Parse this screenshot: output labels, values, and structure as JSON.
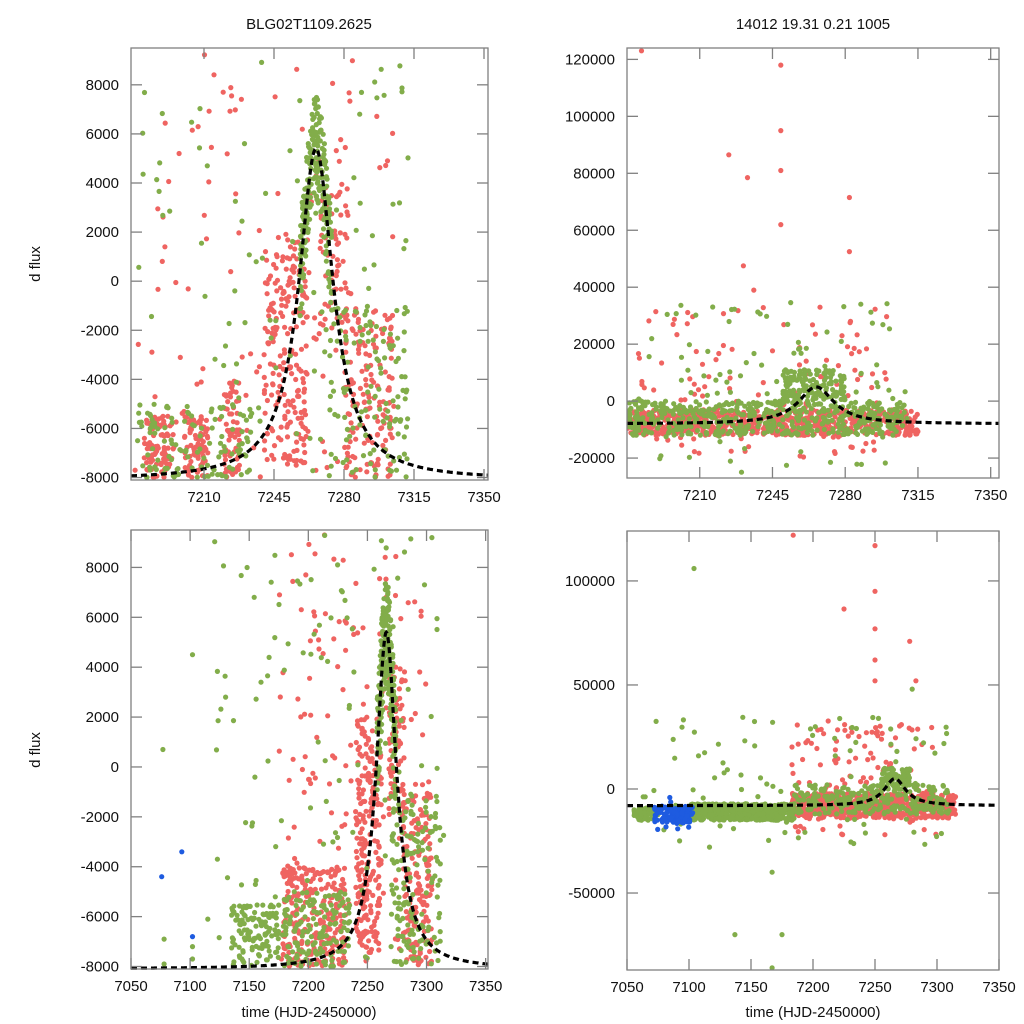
{
  "figure": {
    "titles": [
      "BLG02T1109.2625",
      "14012  19.31  0.21  1005"
    ],
    "ylabel": "d flux",
    "xlabel": "time (HJD-2450000)"
  },
  "colors": {
    "red": "#ef6461",
    "green": "#82ad4a",
    "blue": "#1e5be0",
    "model": "#000000",
    "frame": "#808080"
  },
  "chart_data": [
    {
      "type": "scatter",
      "panel": "top-left",
      "title": "BLG02T1109.2625",
      "ylabel": "d flux",
      "xlabel": "",
      "xlim": [
        7173.5,
        7352
      ],
      "ylim": [
        -8100,
        9500
      ],
      "xticks": [
        7210,
        7245,
        7280,
        7315,
        7350
      ],
      "yticks": [
        8000,
        6000,
        4000,
        2000,
        0,
        -2000,
        -4000,
        -6000,
        -8000
      ],
      "model": {
        "t0": 7266,
        "peak": 5400,
        "base": -8100,
        "width": 14
      },
      "series": [
        {
          "name": "red",
          "color_key": "red",
          "clusters": [
            [
              7180,
              7195,
              -8000,
              -5500,
              90
            ],
            [
              7200,
              7212,
              -8000,
              -5500,
              80
            ],
            [
              7220,
              7228,
              -8000,
              -4000,
              60
            ],
            [
              7240,
              7262,
              -7500,
              2000,
              200
            ],
            [
              7268,
              7282,
              -2000,
              4000,
              60
            ],
            [
              7280,
              7305,
              -8000,
              -1000,
              150
            ]
          ],
          "scatter_range": [
            7175,
            7305,
            -8000,
            9300,
            120
          ]
        },
        {
          "name": "green",
          "color_key": "green",
          "clusters": [
            [
              7175,
              7235,
              -8000,
              -5000,
              120
            ],
            [
              7258,
              7274,
              2000,
              9000,
              230
            ],
            [
              7270,
              7312,
              -8000,
              -1000,
              120
            ]
          ],
          "scatter_range": [
            7175,
            7315,
            -8000,
            9300,
            90
          ]
        }
      ]
    },
    {
      "type": "scatter",
      "panel": "top-right",
      "title": "14012  19.31  0.21  1005",
      "ylabel": "",
      "xlabel": "",
      "xlim": [
        7175,
        7354
      ],
      "ylim": [
        -27000,
        124000
      ],
      "xticks": [
        7210,
        7245,
        7280,
        7315,
        7350
      ],
      "yticks": [
        120000,
        100000,
        80000,
        60000,
        40000,
        20000,
        0,
        -20000
      ],
      "model": {
        "t0": 7266,
        "peak": 5000,
        "base": -8000,
        "width": 14
      },
      "series": [
        {
          "name": "red",
          "color_key": "red",
          "clusters": [
            [
              7175,
              7315,
              -12000,
              -3000,
              700
            ]
          ],
          "scatter_range": [
            7180,
            7300,
            -20000,
            33000,
            120
          ],
          "outliers": [
            [
              7182,
              123000
            ],
            [
              7249,
              118000
            ],
            [
              7249,
              95000
            ],
            [
              7249,
              81000
            ],
            [
              7224,
              86500
            ],
            [
              7233,
              78500
            ],
            [
              7231,
              47500
            ],
            [
              7249,
              62000
            ],
            [
              7282,
              71500
            ],
            [
              7282,
              52500
            ],
            [
              7236,
              39000
            ]
          ]
        },
        {
          "name": "green",
          "color_key": "green",
          "clusters": [
            [
              7175,
              7310,
              -12000,
              0,
              500
            ],
            [
              7250,
              7280,
              0,
              11000,
              150
            ]
          ],
          "scatter_range": [
            7180,
            7310,
            -26000,
            35000,
            100
          ]
        }
      ]
    },
    {
      "type": "scatter",
      "panel": "bottom-left",
      "title": "",
      "ylabel": "d flux",
      "xlabel": "time (HJD-2450000)",
      "xlim": [
        7050,
        7352
      ],
      "ylim": [
        -8100,
        9500
      ],
      "xticks": [
        7050,
        7100,
        7150,
        7200,
        7250,
        7300,
        7350
      ],
      "yticks": [
        8000,
        6000,
        4000,
        2000,
        0,
        -2000,
        -4000,
        -6000,
        -8000
      ],
      "model": {
        "t0": 7266,
        "peak": 5400,
        "base": -8100,
        "width": 14
      },
      "series": [
        {
          "name": "red",
          "color_key": "red",
          "clusters": [
            [
              7178,
              7232,
              -8000,
              -4000,
              250
            ],
            [
              7240,
              7262,
              -7500,
              2000,
              200
            ],
            [
              7268,
              7282,
              -2000,
              4000,
              60
            ],
            [
              7280,
              7305,
              -8000,
              -1000,
              150
            ]
          ],
          "scatter_range": [
            7175,
            7305,
            -8000,
            9300,
            160
          ]
        },
        {
          "name": "green",
          "color_key": "green",
          "clusters": [
            [
              7135,
              7175,
              -8000,
              -5500,
              120
            ],
            [
              7178,
              7235,
              -8000,
              -5000,
              150
            ],
            [
              7258,
              7274,
              2000,
              9000,
              230
            ],
            [
              7270,
              7312,
              -8000,
              -1000,
              140
            ]
          ],
          "scatter_range": [
            7120,
            7315,
            -8000,
            9300,
            110
          ],
          "outliers": [
            [
              7077,
              700
            ],
            [
              7102,
              4500
            ],
            [
              7130,
              2800
            ],
            [
              7160,
              3400
            ],
            [
              7078,
              -6900
            ],
            [
              7078,
              -7900
            ],
            [
              7102,
              -7200
            ],
            [
              7102,
              -7700
            ],
            [
              7115,
              -6100
            ]
          ]
        },
        {
          "name": "blue",
          "color_key": "blue",
          "points": [
            [
              7076,
              -4400
            ],
            [
              7093,
              -3400
            ],
            [
              7102,
              -6800
            ]
          ]
        }
      ]
    },
    {
      "type": "scatter",
      "panel": "bottom-right",
      "title": "",
      "ylabel": "",
      "xlabel": "time (HJD-2450000)",
      "xlim": [
        7050,
        7350
      ],
      "ylim": [
        -87000,
        124000
      ],
      "xticks": [
        7050,
        7100,
        7150,
        7200,
        7250,
        7300,
        7350
      ],
      "yticks": [
        100000,
        50000,
        0,
        -50000
      ],
      "model": {
        "t0": 7266,
        "peak": 5000,
        "base": -8000,
        "width": 14
      },
      "series": [
        {
          "name": "red",
          "color_key": "red",
          "clusters": [
            [
              7183,
              7315,
              -14000,
              -2000,
              600
            ]
          ],
          "scatter_range": [
            7183,
            7300,
            -22000,
            33000,
            120
          ],
          "outliers": [
            [
              7184,
              122000
            ],
            [
              7250,
              117000
            ],
            [
              7250,
              95000
            ],
            [
              7250,
              77000
            ],
            [
              7250,
              62000
            ],
            [
              7225,
              86500
            ],
            [
              7250,
              52000
            ],
            [
              7278,
              71000
            ],
            [
              7283,
              52000
            ]
          ]
        },
        {
          "name": "green",
          "color_key": "green",
          "clusters": [
            [
              7055,
              7075,
              -15000,
              -9000,
              70
            ],
            [
              7100,
              7185,
              -15000,
              -7000,
              600
            ],
            [
              7185,
              7310,
              -12000,
              2000,
              250
            ],
            [
              7255,
              7278,
              0,
              10000,
              100
            ]
          ],
          "scatter_range": [
            7060,
            7310,
            -30000,
            35000,
            90
          ],
          "outliers": [
            [
              7104,
              106000
            ],
            [
              7137,
              -70000
            ],
            [
              7175,
              -70000
            ],
            [
              7167,
              -86000
            ],
            [
              7167,
              -40000
            ],
            [
              7280,
              48000
            ]
          ]
        },
        {
          "name": "blue",
          "color_key": "blue",
          "clusters": [
            [
              7072,
              7103,
              -16000,
              -8000,
              140
            ]
          ],
          "scatter_range": [
            7072,
            7100,
            -20000,
            -3000,
            10
          ]
        }
      ]
    }
  ]
}
